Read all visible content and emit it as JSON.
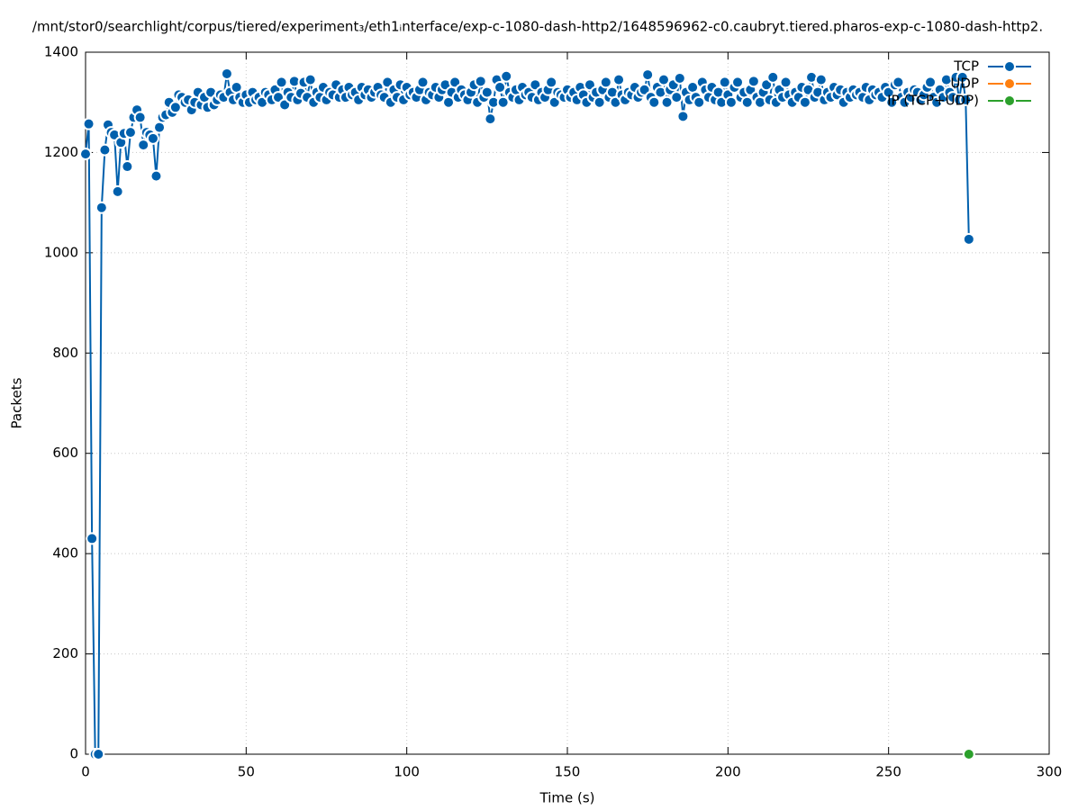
{
  "chart_data": {
    "type": "line",
    "title": "/mnt/stor0/searchlight/corpus/tiered/experiment₃/eth1ᵢnterface/exp-c-1080-dash-http2/1648596962-c0.caubryt.tiered.pharos-exp-c-1080-dash-http2.",
    "x_label": "Time (s)",
    "y_label": "Packets",
    "xlim": [
      0,
      300
    ],
    "xticks": [
      0,
      50,
      100,
      150,
      200,
      250,
      300
    ],
    "ylim": [
      0,
      1400
    ],
    "yticks": [
      0,
      200,
      400,
      600,
      800,
      1000,
      1200,
      1400
    ],
    "grid": true,
    "legend": "top-right",
    "series": [
      {
        "name": "TCP",
        "color": "#0060ad",
        "x": [
          0,
          1,
          2,
          3,
          4,
          5,
          6,
          7,
          8,
          9,
          10,
          11,
          12,
          13,
          14,
          15,
          16,
          17,
          18,
          19,
          20,
          21,
          22,
          23,
          24,
          25,
          26,
          27,
          28,
          29,
          30,
          31,
          32,
          33,
          34,
          35,
          36,
          37,
          38,
          39,
          40,
          41,
          42,
          43,
          44,
          45,
          46,
          47,
          48,
          49,
          50,
          51,
          52,
          53,
          54,
          55,
          56,
          57,
          58,
          59,
          60,
          61,
          62,
          63,
          64,
          65,
          66,
          67,
          68,
          69,
          70,
          71,
          72,
          73,
          74,
          75,
          76,
          77,
          78,
          79,
          80,
          81,
          82,
          83,
          84,
          85,
          86,
          87,
          88,
          89,
          90,
          91,
          92,
          93,
          94,
          95,
          96,
          97,
          98,
          99,
          100,
          101,
          102,
          103,
          104,
          105,
          106,
          107,
          108,
          109,
          110,
          111,
          112,
          113,
          114,
          115,
          116,
          117,
          118,
          119,
          120,
          121,
          122,
          123,
          124,
          125,
          126,
          127,
          128,
          129,
          130,
          131,
          132,
          133,
          134,
          135,
          136,
          137,
          138,
          139,
          140,
          141,
          142,
          143,
          144,
          145,
          146,
          147,
          148,
          149,
          150,
          151,
          152,
          153,
          154,
          155,
          156,
          157,
          158,
          159,
          160,
          161,
          162,
          163,
          164,
          165,
          166,
          167,
          168,
          169,
          170,
          171,
          172,
          173,
          174,
          175,
          176,
          177,
          178,
          179,
          180,
          181,
          182,
          183,
          184,
          185,
          186,
          187,
          188,
          189,
          190,
          191,
          192,
          193,
          194,
          195,
          196,
          197,
          198,
          199,
          200,
          201,
          202,
          203,
          204,
          205,
          206,
          207,
          208,
          209,
          210,
          211,
          212,
          213,
          214,
          215,
          216,
          217,
          218,
          219,
          220,
          221,
          222,
          223,
          224,
          225,
          226,
          227,
          228,
          229,
          230,
          231,
          232,
          233,
          234,
          235,
          236,
          237,
          238,
          239,
          240,
          241,
          242,
          243,
          244,
          245,
          246,
          247,
          248,
          249,
          250,
          251,
          252,
          253,
          254,
          255,
          256,
          257,
          258,
          259,
          260,
          261,
          262,
          263,
          264,
          265,
          266,
          267,
          268,
          269,
          270,
          271,
          272,
          273,
          274,
          275
        ],
        "values": [
          1197,
          1257,
          430,
          0,
          0,
          1090,
          1205,
          1255,
          1240,
          1235,
          1122,
          1220,
          1238,
          1172,
          1240,
          1270,
          1285,
          1270,
          1215,
          1240,
          1235,
          1228,
          1153,
          1250,
          1270,
          1275,
          1300,
          1280,
          1290,
          1315,
          1310,
          1300,
          1305,
          1285,
          1300,
          1320,
          1295,
          1310,
          1290,
          1320,
          1295,
          1305,
          1315,
          1310,
          1357,
          1320,
          1305,
          1330,
          1310,
          1300,
          1315,
          1300,
          1320,
          1305,
          1310,
          1300,
          1320,
          1315,
          1305,
          1325,
          1310,
          1340,
          1295,
          1320,
          1310,
          1342,
          1305,
          1318,
          1340,
          1310,
          1345,
          1300,
          1320,
          1310,
          1330,
          1305,
          1320,
          1315,
          1335,
          1310,
          1325,
          1310,
          1330,
          1315,
          1320,
          1305,
          1330,
          1315,
          1325,
          1310,
          1320,
          1330,
          1315,
          1310,
          1340,
          1300,
          1325,
          1310,
          1335,
          1305,
          1330,
          1315,
          1320,
          1310,
          1325,
          1340,
          1305,
          1320,
          1315,
          1330,
          1310,
          1325,
          1335,
          1300,
          1320,
          1340,
          1310,
          1325,
          1315,
          1305,
          1320,
          1335,
          1300,
          1342,
          1310,
          1320,
          1267,
          1300,
          1345,
          1330,
          1300,
          1352,
          1320,
          1310,
          1325,
          1305,
          1330,
          1315,
          1320,
          1310,
          1335,
          1305,
          1320,
          1310,
          1325,
          1340,
          1300,
          1320,
          1315,
          1310,
          1325,
          1310,
          1320,
          1305,
          1330,
          1315,
          1300,
          1335,
          1310,
          1320,
          1300,
          1325,
          1340,
          1310,
          1320,
          1300,
          1345,
          1315,
          1305,
          1320,
          1315,
          1330,
          1310,
          1320,
          1325,
          1355,
          1310,
          1300,
          1330,
          1320,
          1345,
          1300,
          1325,
          1335,
          1310,
          1348,
          1272,
          1320,
          1305,
          1330,
          1310,
          1300,
          1340,
          1325,
          1310,
          1330,
          1305,
          1320,
          1300,
          1340,
          1315,
          1300,
          1330,
          1340,
          1310,
          1320,
          1300,
          1325,
          1342,
          1310,
          1300,
          1320,
          1335,
          1305,
          1350,
          1300,
          1325,
          1310,
          1340,
          1315,
          1300,
          1320,
          1310,
          1330,
          1300,
          1325,
          1350,
          1310,
          1320,
          1345,
          1305,
          1320,
          1310,
          1330,
          1315,
          1325,
          1300,
          1320,
          1310,
          1325,
          1315,
          1320,
          1310,
          1330,
          1305,
          1325,
          1315,
          1320,
          1310,
          1330,
          1320,
          1300,
          1335,
          1340,
          1310,
          1300,
          1320,
          1310,
          1325,
          1320,
          1305,
          1315,
          1330,
          1340,
          1310,
          1300,
          1325,
          1310,
          1345,
          1320,
          1310,
          1350,
          1305,
          1350,
          1305,
          1027
        ]
      },
      {
        "name": "UDP",
        "color": "#ff7f0e",
        "x": [],
        "values": []
      },
      {
        "name": "IP (TCP+UDP)",
        "color": "#2ca02c",
        "x": [
          275
        ],
        "values": [
          0
        ]
      }
    ]
  }
}
